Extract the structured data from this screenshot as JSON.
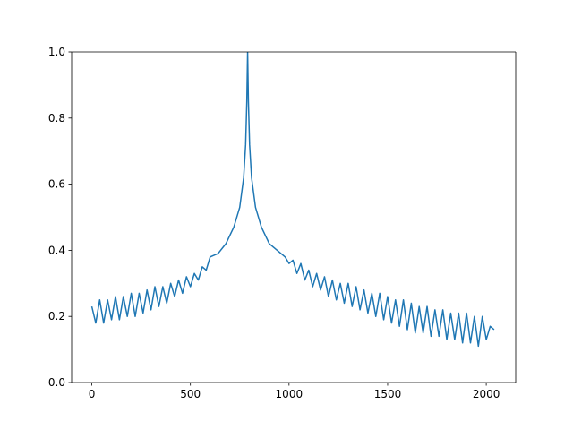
{
  "chart_data": {
    "type": "line",
    "x": [
      0,
      20,
      40,
      60,
      80,
      100,
      120,
      140,
      160,
      180,
      200,
      220,
      240,
      260,
      280,
      300,
      320,
      340,
      360,
      380,
      400,
      420,
      440,
      460,
      480,
      500,
      520,
      540,
      560,
      580,
      600,
      640,
      680,
      720,
      750,
      770,
      780,
      786,
      790,
      794,
      800,
      810,
      830,
      860,
      900,
      940,
      980,
      1000,
      1020,
      1040,
      1060,
      1080,
      1100,
      1120,
      1140,
      1160,
      1180,
      1200,
      1220,
      1240,
      1260,
      1280,
      1300,
      1320,
      1340,
      1360,
      1380,
      1400,
      1420,
      1440,
      1460,
      1480,
      1500,
      1520,
      1540,
      1560,
      1580,
      1600,
      1620,
      1640,
      1660,
      1680,
      1700,
      1720,
      1740,
      1760,
      1780,
      1800,
      1820,
      1840,
      1860,
      1880,
      1900,
      1920,
      1940,
      1960,
      1980,
      2000,
      2020,
      2040
    ],
    "series": [
      {
        "color": "#1f77b4",
        "values": [
          0.23,
          0.18,
          0.25,
          0.18,
          0.25,
          0.19,
          0.26,
          0.19,
          0.26,
          0.2,
          0.27,
          0.2,
          0.27,
          0.21,
          0.28,
          0.22,
          0.29,
          0.23,
          0.29,
          0.24,
          0.3,
          0.26,
          0.31,
          0.27,
          0.32,
          0.29,
          0.33,
          0.31,
          0.35,
          0.34,
          0.38,
          0.39,
          0.42,
          0.47,
          0.53,
          0.62,
          0.72,
          0.85,
          1.0,
          0.85,
          0.72,
          0.62,
          0.53,
          0.47,
          0.42,
          0.4,
          0.38,
          0.36,
          0.37,
          0.33,
          0.36,
          0.31,
          0.34,
          0.29,
          0.33,
          0.28,
          0.32,
          0.26,
          0.31,
          0.25,
          0.3,
          0.24,
          0.3,
          0.23,
          0.29,
          0.22,
          0.28,
          0.21,
          0.27,
          0.2,
          0.27,
          0.19,
          0.26,
          0.18,
          0.25,
          0.17,
          0.25,
          0.16,
          0.24,
          0.15,
          0.23,
          0.15,
          0.23,
          0.14,
          0.22,
          0.14,
          0.22,
          0.13,
          0.21,
          0.13,
          0.21,
          0.12,
          0.21,
          0.12,
          0.2,
          0.11,
          0.2,
          0.13,
          0.17,
          0.16
        ]
      }
    ],
    "xlim": [
      -102.35,
      2149.35
    ],
    "ylim": [
      0,
      1
    ],
    "xticks": [
      0,
      500,
      1000,
      1500,
      2000
    ],
    "yticks": [
      {
        "value": 0,
        "label": "0.0"
      },
      {
        "value": 0.2,
        "label": "0.2"
      },
      {
        "value": 0.4,
        "label": "0.4"
      },
      {
        "value": 0.6,
        "label": "0.6"
      },
      {
        "value": 0.8,
        "label": "0.8"
      },
      {
        "value": 1,
        "label": "1.0"
      }
    ]
  }
}
